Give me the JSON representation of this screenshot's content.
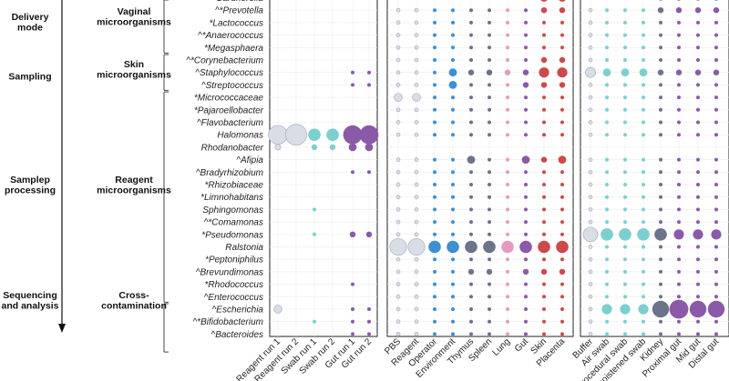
{
  "chart_data": {
    "type": "bubble-matrix",
    "categories": [
      {
        "label": "Delivery\nmode",
        "row_span": [
          0,
          4
        ]
      },
      {
        "label": "Sampling",
        "row_span": [
          5,
          7
        ]
      },
      {
        "label": "Samplep\nprocessing",
        "row_span": [
          8,
          24
        ]
      },
      {
        "label": "Sequencing\nand analysis",
        "row_span": [
          25,
          28
        ]
      }
    ],
    "groups": [
      {
        "label": "Vaginal\nmicroorganisms",
        "row_span": [
          0,
          4
        ]
      },
      {
        "label": "Skin\nmicroorganisms",
        "row_span": [
          5,
          7
        ]
      },
      {
        "label": "Reagent\nmicroorganisms",
        "row_span": [
          8,
          24
        ]
      },
      {
        "label": "Cross-\ncontamination",
        "row_span": [
          25,
          28
        ]
      }
    ],
    "rows": [
      "Gardnerella",
      "^*Prevotella",
      "*Lactococcus",
      "^*Anaerococcus",
      "*Megasphaera",
      "^*Corynebacterium",
      "^Staphylococcus",
      "^Streptococcus",
      "*Micrococcaceae",
      "*Pajaroellobacter",
      "^Flavobacterium",
      "Halomonas",
      "Rhodanobacter",
      "^Afipia",
      "^Bradyrhizobium",
      "*Rhizobiaceae",
      "*Limnohabitans",
      "Sphingomonas",
      "^*Comamonas",
      "*Pseudomonas",
      "Ralstonia",
      "*Peptoniphilus",
      "^Brevundimonas",
      "*Rhodococcus",
      "^Enterococcus",
      "^Escherichia",
      "^*Bifidobacterium",
      "^Bacteroides"
    ],
    "panels": [
      {
        "columns": [
          "Reagent run 1",
          "Reagent run 2",
          "Swab run 1",
          "Swab run 2",
          "Gut run 1",
          "Gut run 2"
        ],
        "colors": [
          "#d9dde6",
          "#d9dde6",
          "#7ccfcf",
          "#7ccfcf",
          "#8a5aa8",
          "#8a5aa8"
        ]
      },
      {
        "columns": [
          "PBS",
          "Reagent",
          "Operator",
          "Environment",
          "Thymus",
          "Spleen",
          "Lung",
          "Gut",
          "Skin",
          "Placenta"
        ],
        "colors": [
          "#d9dde6",
          "#d9dde6",
          "#3d8fd0",
          "#3d8fd0",
          "#6b7489",
          "#6b7489",
          "#e59ac0",
          "#8a5aa8",
          "#cc4a4a",
          "#cc4a4a"
        ]
      },
      {
        "columns": [
          "Buffer",
          "Air swab",
          "Procedural swab",
          "Unmoistened swab",
          "Kidney",
          "Proximal gut",
          "Mid gut",
          "Distal gut"
        ],
        "colors": [
          "#d9dde6",
          "#7ccfcf",
          "#7ccfcf",
          "#7ccfcf",
          "#6b7489",
          "#8a5aa8",
          "#8a5aa8",
          "#8a5aa8"
        ]
      }
    ],
    "values": [
      [
        [
          0,
          0,
          0,
          0,
          0,
          0
        ],
        [
          0,
          0,
          0,
          0,
          0,
          0
        ],
        [
          0,
          0,
          0,
          0,
          0,
          0
        ],
        [
          0,
          0,
          0,
          0,
          0,
          0
        ],
        [
          0,
          0,
          0,
          0,
          0,
          0
        ],
        [
          0,
          0,
          0,
          0,
          0,
          0
        ],
        [
          0,
          0,
          0,
          0,
          1,
          1
        ],
        [
          0,
          0,
          0,
          0,
          1,
          1
        ],
        [
          0,
          0,
          0,
          0,
          0,
          0
        ],
        [
          0,
          0,
          0,
          0,
          0,
          0
        ],
        [
          0,
          0,
          0,
          0,
          0,
          0
        ],
        [
          8,
          9,
          5,
          5,
          8,
          8
        ],
        [
          2,
          0,
          2,
          2,
          3,
          3
        ],
        [
          0,
          0,
          0,
          0,
          0,
          0
        ],
        [
          0,
          0,
          0,
          0,
          1,
          1
        ],
        [
          0,
          0,
          0,
          0,
          0,
          0
        ],
        [
          0,
          0,
          0,
          0,
          0,
          0
        ],
        [
          0,
          0,
          1,
          0,
          0,
          0
        ],
        [
          0,
          0,
          0,
          0,
          0,
          0
        ],
        [
          0,
          0,
          1,
          0,
          2,
          2
        ],
        [
          0,
          0,
          0,
          0,
          0,
          0
        ],
        [
          0,
          0,
          0,
          0,
          0,
          0
        ],
        [
          0,
          0,
          0,
          0,
          0,
          0
        ],
        [
          0,
          0,
          0,
          0,
          1,
          0
        ],
        [
          0,
          0,
          0,
          0,
          0,
          0
        ],
        [
          3,
          0,
          0,
          0,
          1,
          1
        ],
        [
          0,
          0,
          1,
          0,
          1,
          1
        ],
        [
          0,
          0,
          0,
          0,
          1,
          1
        ]
      ],
      [
        [
          1,
          1,
          1,
          1,
          1,
          1,
          1,
          1,
          3,
          3
        ],
        [
          1,
          1,
          1,
          1,
          1,
          1,
          1,
          1,
          2,
          2
        ],
        [
          1,
          1,
          1,
          1,
          1,
          1,
          1,
          1,
          1,
          1
        ],
        [
          1,
          1,
          1,
          1,
          1,
          1,
          1,
          1,
          1,
          1
        ],
        [
          1,
          1,
          1,
          1,
          1,
          1,
          1,
          1,
          1,
          1
        ],
        [
          1,
          1,
          1,
          1,
          1,
          1,
          1,
          1,
          2,
          2
        ],
        [
          1,
          1,
          1,
          3,
          2,
          2,
          2,
          2,
          4,
          4
        ],
        [
          1,
          1,
          1,
          3,
          1,
          1,
          1,
          2,
          2,
          2
        ],
        [
          3,
          3,
          1,
          1,
          1,
          1,
          1,
          1,
          1,
          1
        ],
        [
          1,
          1,
          1,
          1,
          1,
          1,
          1,
          1,
          1,
          1
        ],
        [
          1,
          1,
          1,
          1,
          1,
          1,
          1,
          1,
          1,
          1
        ],
        [
          1,
          1,
          1,
          1,
          1,
          1,
          1,
          1,
          1,
          1
        ],
        [
          0,
          0,
          0,
          0,
          0,
          0,
          0,
          0,
          0,
          0
        ],
        [
          1,
          1,
          1,
          1,
          3,
          1,
          1,
          3,
          2,
          3
        ],
        [
          1,
          1,
          1,
          1,
          1,
          1,
          1,
          1,
          1,
          1
        ],
        [
          1,
          1,
          1,
          1,
          1,
          1,
          1,
          1,
          1,
          1
        ],
        [
          1,
          1,
          1,
          1,
          1,
          1,
          1,
          1,
          1,
          1
        ],
        [
          1,
          1,
          1,
          1,
          1,
          1,
          1,
          1,
          1,
          1
        ],
        [
          1,
          1,
          1,
          1,
          1,
          1,
          1,
          1,
          1,
          1
        ],
        [
          1,
          1,
          1,
          1,
          1,
          1,
          1,
          1,
          1,
          1
        ],
        [
          7,
          7,
          5,
          5,
          5,
          5,
          5,
          5,
          5,
          5
        ],
        [
          1,
          1,
          1,
          1,
          1,
          1,
          1,
          1,
          1,
          1
        ],
        [
          1,
          1,
          1,
          1,
          2,
          2,
          1,
          2,
          2,
          2
        ],
        [
          1,
          1,
          1,
          1,
          1,
          1,
          1,
          1,
          1,
          1
        ],
        [
          1,
          1,
          1,
          1,
          1,
          1,
          1,
          1,
          1,
          1
        ],
        [
          1,
          1,
          1,
          1,
          1,
          1,
          1,
          1,
          1,
          1
        ],
        [
          1,
          1,
          1,
          1,
          1,
          1,
          1,
          1,
          1,
          1
        ],
        [
          1,
          1,
          1,
          1,
          1,
          1,
          1,
          1,
          1,
          1
        ]
      ],
      [
        [
          1,
          1,
          1,
          1,
          2,
          2,
          2,
          2
        ],
        [
          1,
          1,
          1,
          1,
          2,
          2,
          2,
          2
        ],
        [
          1,
          1,
          1,
          1,
          1,
          1,
          1,
          1
        ],
        [
          1,
          1,
          1,
          1,
          1,
          1,
          1,
          1
        ],
        [
          1,
          1,
          1,
          1,
          1,
          1,
          1,
          1
        ],
        [
          1,
          1,
          1,
          1,
          1,
          1,
          1,
          1
        ],
        [
          4,
          3,
          3,
          3,
          2,
          2,
          2,
          2
        ],
        [
          1,
          1,
          1,
          1,
          1,
          1,
          1,
          1
        ],
        [
          1,
          1,
          1,
          1,
          1,
          1,
          1,
          1
        ],
        [
          1,
          1,
          1,
          1,
          1,
          1,
          1,
          1
        ],
        [
          1,
          1,
          1,
          1,
          1,
          1,
          1,
          1
        ],
        [
          1,
          1,
          1,
          1,
          1,
          1,
          1,
          1
        ],
        [
          0,
          0,
          0,
          0,
          0,
          0,
          0,
          0
        ],
        [
          1,
          1,
          1,
          1,
          1,
          1,
          1,
          1
        ],
        [
          1,
          1,
          1,
          1,
          1,
          1,
          1,
          1
        ],
        [
          1,
          1,
          1,
          1,
          1,
          1,
          1,
          1
        ],
        [
          1,
          1,
          1,
          1,
          1,
          1,
          1,
          1
        ],
        [
          1,
          1,
          1,
          1,
          1,
          1,
          1,
          1
        ],
        [
          1,
          1,
          1,
          1,
          1,
          1,
          1,
          1
        ],
        [
          6,
          5,
          5,
          5,
          5,
          4,
          4,
          4
        ],
        [
          1,
          1,
          1,
          1,
          1,
          1,
          1,
          1
        ],
        [
          1,
          1,
          1,
          1,
          1,
          1,
          1,
          1
        ],
        [
          1,
          1,
          1,
          1,
          1,
          1,
          1,
          1
        ],
        [
          1,
          1,
          1,
          1,
          1,
          1,
          1,
          1
        ],
        [
          1,
          1,
          1,
          1,
          1,
          1,
          1,
          1
        ],
        [
          1,
          4,
          4,
          4,
          7,
          8,
          7,
          7
        ],
        [
          1,
          1,
          1,
          1,
          1,
          1,
          1,
          1
        ],
        [
          1,
          1,
          1,
          1,
          1,
          1,
          1,
          1
        ]
      ]
    ]
  }
}
